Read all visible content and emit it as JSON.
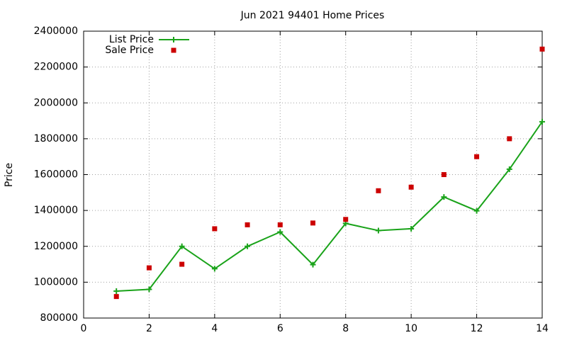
{
  "chart_data": {
    "type": "line",
    "title": "Jun 2021 94401 Home Prices",
    "xlabel": "",
    "ylabel": "Price",
    "xlim": [
      0,
      14
    ],
    "ylim": [
      800000,
      2400000
    ],
    "x_ticks": [
      "0",
      "2",
      "4",
      "6",
      "8",
      "10",
      "12",
      "14"
    ],
    "y_ticks": [
      "800000",
      "1000000",
      "1200000",
      "1400000",
      "1600000",
      "1800000",
      "2000000",
      "2200000",
      "2400000"
    ],
    "grid": true,
    "legend_position": "top-left",
    "series": [
      {
        "name": "List Price",
        "style": "line-with-plus-markers",
        "color": "#1aa31a",
        "x": [
          1,
          2,
          3,
          4,
          5,
          6,
          7,
          8,
          9,
          10,
          11,
          12,
          13,
          14
        ],
        "y": [
          950000,
          960000,
          1200000,
          1075000,
          1200000,
          1280000,
          1098000,
          1328000,
          1288000,
          1298000,
          1475000,
          1398000,
          1630000,
          1895000
        ]
      },
      {
        "name": "Sale Price",
        "style": "square-markers",
        "color": "#cc0000",
        "x": [
          1,
          2,
          3,
          4,
          5,
          6,
          7,
          8,
          9,
          10,
          11,
          12,
          13,
          14
        ],
        "y": [
          920000,
          1080000,
          1100000,
          1298000,
          1320000,
          1320000,
          1330000,
          1350000,
          1510000,
          1530000,
          1600000,
          1700000,
          1800000,
          2300000
        ]
      }
    ]
  }
}
